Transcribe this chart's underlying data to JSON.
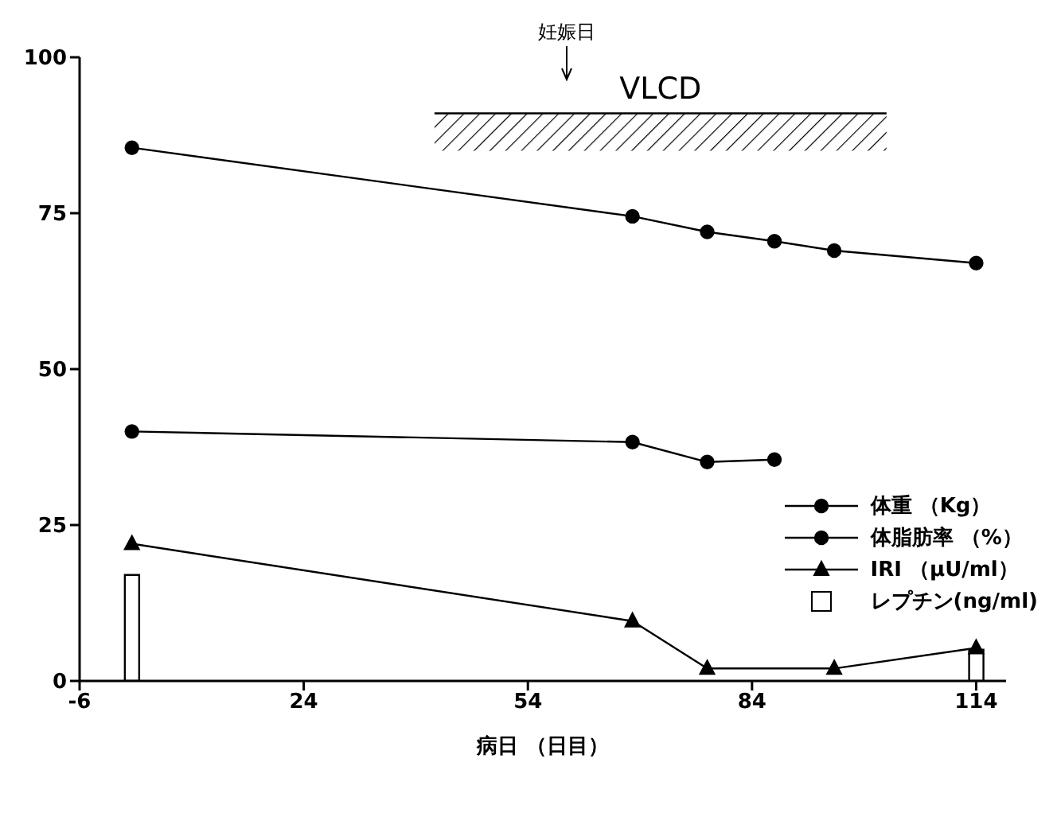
{
  "chart_data": {
    "type": "line",
    "xlabel": "病日 （日目）",
    "xlim": [
      -6,
      118
    ],
    "xticks": [
      -6,
      24,
      54,
      84,
      114
    ],
    "ylim": [
      0,
      100
    ],
    "yticks": [
      0,
      25,
      50,
      75,
      100
    ],
    "grid": false,
    "legend": "right",
    "line_style": "solid",
    "series": [
      {
        "name": "体重 （Kg）",
        "color": "#000000",
        "marker": "circle",
        "x": [
          1,
          68,
          78,
          87,
          95,
          114
        ],
        "values": [
          85.5,
          74.5,
          72,
          70.5,
          69,
          67
        ]
      },
      {
        "name": "体脂肪率 （%）",
        "color": "#000000",
        "marker": "circle",
        "x": [
          1,
          68,
          78,
          87
        ],
        "values": [
          40,
          38.3,
          35.1,
          35.5
        ]
      },
      {
        "name": "IRI （μU/ml）",
        "color": "#000000",
        "marker": "triangle",
        "x": [
          1,
          68,
          78,
          95,
          114
        ],
        "values": [
          22,
          9.6,
          2,
          2,
          5.3
        ]
      },
      {
        "name": "レプチン(ng/ml)",
        "type": "bar",
        "color": "#ffffff",
        "x": [
          1,
          114
        ],
        "values": [
          17,
          5
        ]
      },
      {
        "name": "VLCD",
        "type": "line",
        "color": "#000000",
        "marker": "none",
        "x": [
          41.5,
          102
        ],
        "values": [
          91,
          91
        ],
        "lower": [
          85,
          85
        ],
        "upper": [
          91,
          91
        ]
      }
    ],
    "annotations": [
      "妊娠日"
    ]
  }
}
